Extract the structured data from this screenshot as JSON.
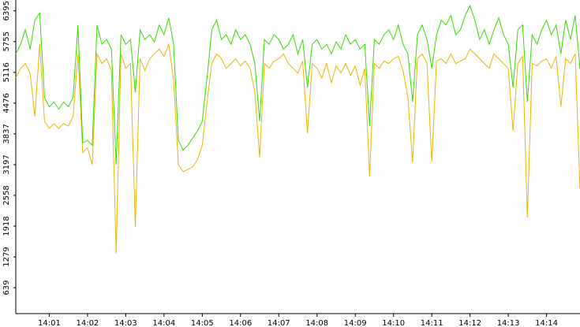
{
  "chart_data": {
    "type": "line",
    "categories": [
      null,
      null,
      null,
      null,
      null,
      null,
      null,
      "14:01",
      null,
      null,
      null,
      null,
      null,
      null,
      null,
      "14:02",
      null,
      null,
      null,
      null,
      null,
      null,
      null,
      "14:03",
      null,
      null,
      null,
      null,
      null,
      null,
      null,
      "14:04",
      null,
      null,
      null,
      null,
      null,
      null,
      null,
      "14:05",
      null,
      null,
      null,
      null,
      null,
      null,
      null,
      "14:06",
      null,
      null,
      null,
      null,
      null,
      null,
      null,
      "14:07",
      null,
      null,
      null,
      null,
      null,
      null,
      null,
      "14:08",
      null,
      null,
      null,
      null,
      null,
      null,
      null,
      "14:09",
      null,
      null,
      null,
      null,
      null,
      null,
      null,
      "14:10",
      null,
      null,
      null,
      null,
      null,
      null,
      null,
      "14:11",
      null,
      null,
      null,
      null,
      null,
      null,
      null,
      "14:12",
      null,
      null,
      null,
      null,
      null,
      null,
      null,
      "14:13",
      null,
      null,
      null,
      null,
      null,
      null,
      null,
      "14:14",
      null,
      null,
      null,
      null,
      null,
      null,
      null
    ],
    "series": [
      {
        "color": "#f0b400",
        "values": [
          5000,
          5200,
          5300,
          5100,
          4200,
          5700,
          4100,
          3950,
          4050,
          3950,
          4050,
          4000,
          4200,
          5500,
          3450,
          3550,
          3200,
          5500,
          5300,
          5400,
          5150,
          1350,
          5500,
          5200,
          5300,
          1900,
          5400,
          5150,
          5400,
          5500,
          5600,
          5450,
          5700,
          4950,
          3200,
          3050,
          3100,
          3150,
          3300,
          3600,
          4500,
          5300,
          5500,
          5400,
          5200,
          5300,
          5400,
          5250,
          5350,
          5200,
          4700,
          3350,
          5300,
          5200,
          5350,
          5400,
          5500,
          5300,
          5200,
          5100,
          5350,
          3850,
          5300,
          5200,
          5000,
          5300,
          4900,
          5250,
          5100,
          5300,
          5050,
          5250,
          4850,
          5200,
          2950,
          5300,
          5200,
          5350,
          5300,
          5400,
          5450,
          5150,
          4600,
          3250,
          5400,
          5500,
          5300,
          3250,
          5350,
          5400,
          5300,
          5500,
          5300,
          5350,
          5400,
          5600,
          5500,
          5400,
          5300,
          5200,
          5500,
          5400,
          5300,
          5200,
          3900,
          5300,
          5450,
          2100,
          5300,
          5250,
          5350,
          5400,
          5200,
          5450,
          4400,
          5400,
          5300,
          5500,
          2700
        ]
      },
      {
        "color": "#33dd00",
        "values": [
          5500,
          5700,
          6000,
          5600,
          6200,
          6350,
          4600,
          4400,
          4500,
          4350,
          4500,
          4400,
          4600,
          6100,
          3650,
          3700,
          3600,
          6100,
          5700,
          5800,
          5600,
          3200,
          5900,
          5700,
          5800,
          4700,
          6000,
          5800,
          5900,
          5750,
          6100,
          5900,
          6250,
          5700,
          3700,
          3500,
          3600,
          3750,
          3900,
          4100,
          5000,
          6000,
          6200,
          5800,
          5900,
          5700,
          6000,
          5800,
          5900,
          5700,
          5300,
          4100,
          5800,
          5700,
          5900,
          5800,
          5600,
          5700,
          5900,
          5500,
          5800,
          4800,
          5700,
          5800,
          5600,
          5700,
          5500,
          5750,
          5600,
          5900,
          5700,
          5800,
          5600,
          5700,
          4000,
          5800,
          5700,
          5900,
          6000,
          5800,
          6100,
          5700,
          5500,
          4500,
          5900,
          6100,
          5800,
          5200,
          5900,
          6200,
          6100,
          6300,
          5900,
          6000,
          6300,
          6500,
          6200,
          5800,
          6000,
          5700,
          6000,
          6250,
          5900,
          5700,
          4800,
          6000,
          6100,
          4500,
          5900,
          5700,
          6000,
          6200,
          5900,
          6100,
          5500,
          6200,
          5800,
          6300,
          5200
        ]
      }
    ],
    "ylim": [
      100,
      6620
    ],
    "yticks": [
      639,
      1279,
      1918,
      2558,
      3197,
      3837,
      4476,
      5116,
      5755,
      6395
    ]
  }
}
